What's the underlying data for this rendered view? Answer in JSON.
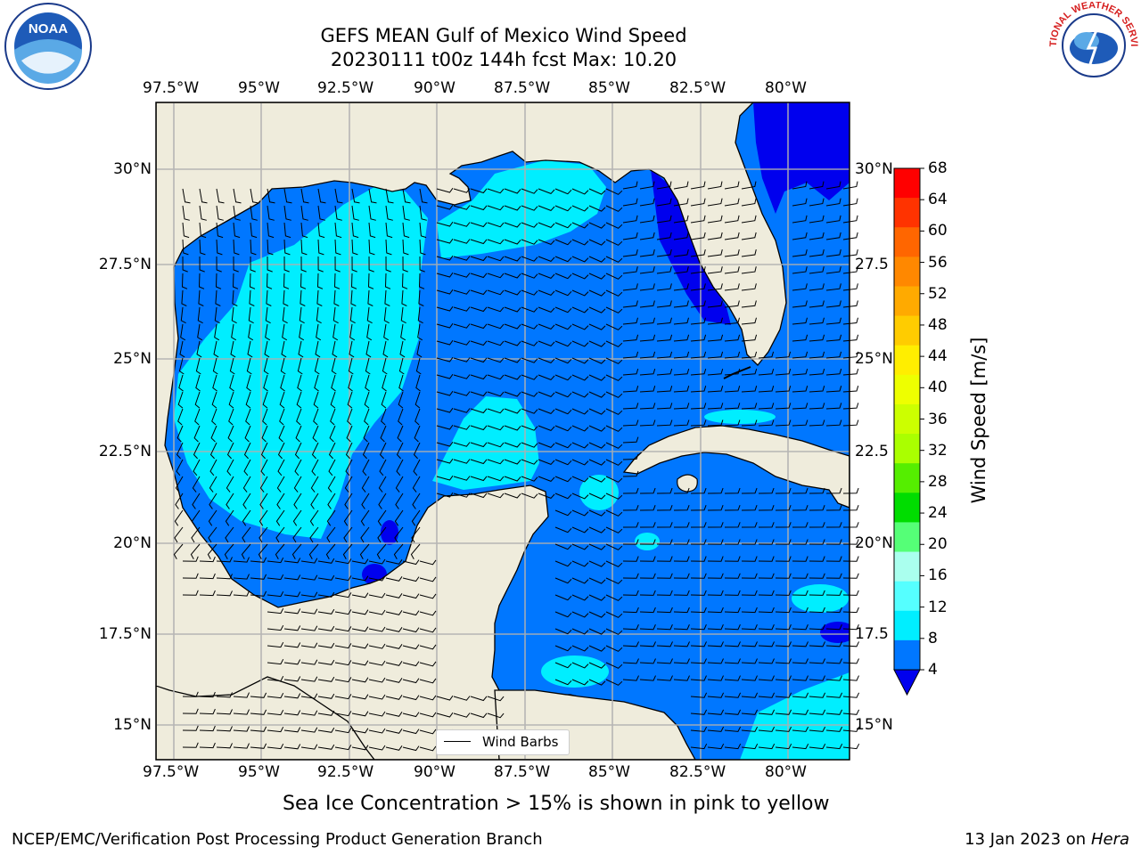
{
  "title": {
    "line1": "GEFS MEAN Gulf of Mexico Wind Speed",
    "line2": "20230111 t00z 144h fcst   Max: 10.20"
  },
  "logos": {
    "left": "noara-logo",
    "right": "national-weather-service-logo",
    "right_ring_text": "NATIONAL WEATHER SERVICE"
  },
  "map": {
    "lon_labels": [
      "97.5°W",
      "95°W",
      "92.5°W",
      "90°W",
      "87.5°W",
      "85°W",
      "82.5°W",
      "80°W"
    ],
    "lat_labels_left": [
      "30°N",
      "27.5°N",
      "25°N",
      "22.5°N",
      "20°N",
      "17.5°N",
      "15°N"
    ],
    "lat_labels_right": [
      "30°N",
      "27.5",
      "25°N",
      "22.5",
      "20°N",
      "17.5",
      "15°N"
    ],
    "land_color": "#efecdc",
    "grid": true,
    "legend_label": "Wind Barbs"
  },
  "colorbar": {
    "label": "Wind Speed [m/s]",
    "ticks": [
      "68",
      "64",
      "60",
      "56",
      "52",
      "48",
      "44",
      "40",
      "36",
      "32",
      "28",
      "24",
      "20",
      "16",
      "12",
      "8",
      "4"
    ],
    "colors": [
      "#ff0000",
      "#ff3300",
      "#ff6600",
      "#ff8800",
      "#ffaa00",
      "#ffcc00",
      "#ffee00",
      "#eeff00",
      "#ccff00",
      "#aaff00",
      "#55ee00",
      "#00dd00",
      "#55ff77",
      "#aaffee",
      "#55ffff",
      "#00eeff",
      "#0077ff"
    ],
    "extend_color": "#0000ee"
  },
  "note": "Sea Ice Concentration > 15% is shown in pink to yellow",
  "footer": {
    "left": "NCEP/EMC/Verification Post Processing Product Generation Branch",
    "right_prefix": "13 Jan 2023 on ",
    "right_italic": "Hera"
  }
}
